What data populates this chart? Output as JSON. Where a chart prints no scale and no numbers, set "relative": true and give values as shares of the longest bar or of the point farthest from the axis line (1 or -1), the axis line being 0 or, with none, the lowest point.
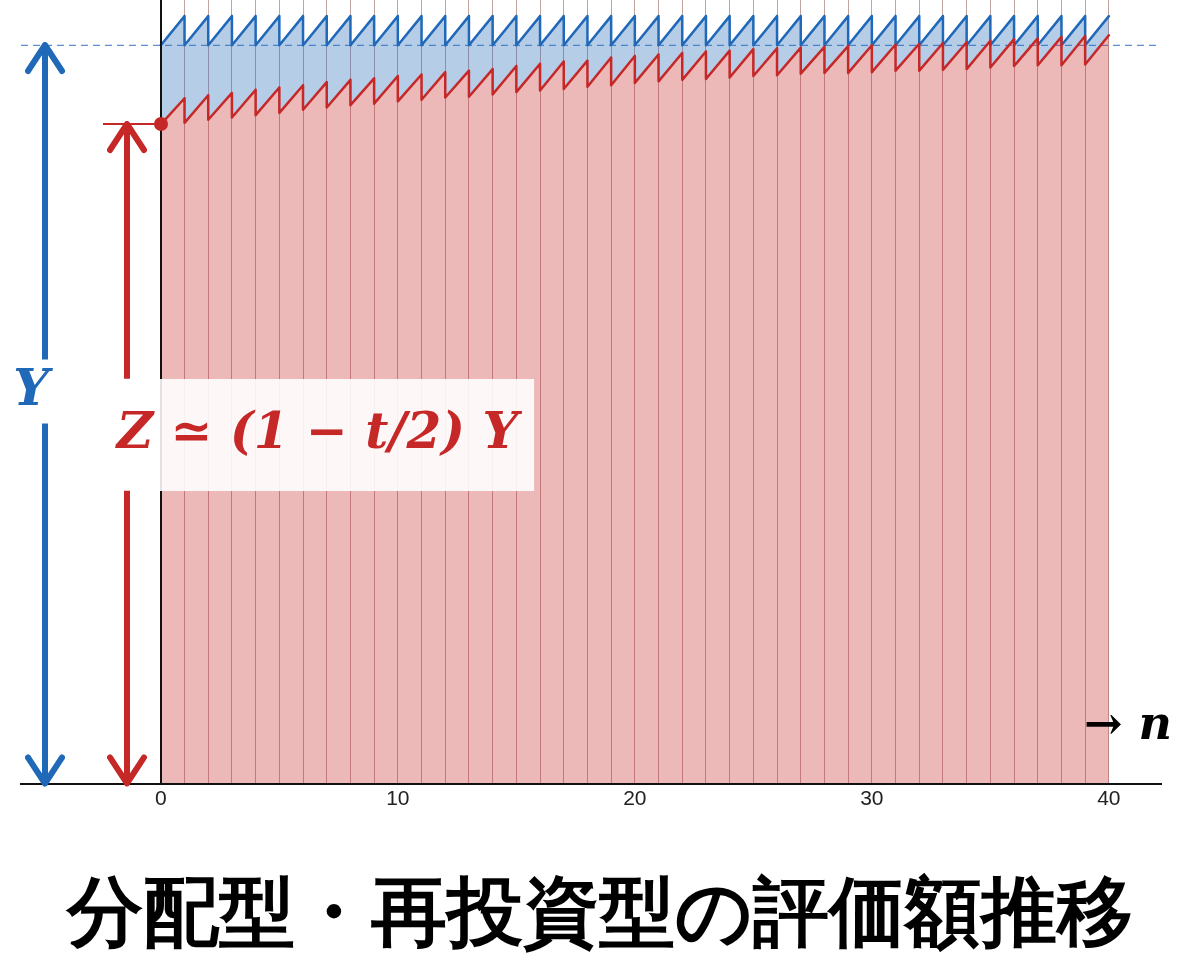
{
  "chart_data": {
    "type": "area",
    "title": "分配型・再投資型の評価額推移",
    "xlabel": "→ n",
    "relative": true,
    "xlim": [
      -5.9,
      42.2
    ],
    "xticks": [
      0,
      {
        "value": 1,
        "label": null
      },
      {
        "value": 2,
        "label": null
      },
      {
        "value": 3,
        "label": null
      },
      {
        "value": 4,
        "label": null
      },
      {
        "value": 5,
        "label": null
      },
      {
        "value": 6,
        "label": null
      },
      {
        "value": 7,
        "label": null
      },
      {
        "value": 8,
        "label": null
      },
      {
        "value": 9,
        "label": null
      },
      10,
      {
        "value": 11,
        "label": null
      },
      {
        "value": 12,
        "label": null
      },
      {
        "value": 13,
        "label": null
      },
      {
        "value": 14,
        "label": null
      },
      {
        "value": 15,
        "label": null
      },
      {
        "value": 16,
        "label": null
      },
      {
        "value": 17,
        "label": null
      },
      {
        "value": 18,
        "label": null
      },
      {
        "value": 19,
        "label": null
      },
      20,
      {
        "value": 21,
        "label": null
      },
      {
        "value": 22,
        "label": null
      },
      {
        "value": 23,
        "label": null
      },
      {
        "value": 24,
        "label": null
      },
      {
        "value": 25,
        "label": null
      },
      {
        "value": 26,
        "label": null
      },
      {
        "value": 27,
        "label": null
      },
      {
        "value": 28,
        "label": null
      },
      {
        "value": 29,
        "label": null
      },
      30,
      {
        "value": 31,
        "label": null
      },
      {
        "value": 32,
        "label": null
      },
      {
        "value": 33,
        "label": null
      },
      {
        "value": 34,
        "label": null
      },
      {
        "value": 35,
        "label": null
      },
      {
        "value": 36,
        "label": null
      },
      {
        "value": 37,
        "label": null
      },
      {
        "value": 38,
        "label": null
      },
      {
        "value": 39,
        "label": null
      },
      40
    ],
    "grid": "x",
    "series": [
      {
        "color": "#2068b8",
        "x": [
          0,
          1,
          1,
          2,
          2,
          3,
          3,
          4,
          4,
          5,
          5,
          6,
          6,
          7,
          7,
          8,
          8,
          9,
          9,
          10,
          10,
          11,
          11,
          12,
          12,
          13,
          13,
          14,
          14,
          15,
          15,
          16,
          16,
          17,
          17,
          18,
          18,
          19,
          19,
          20,
          20,
          21,
          21,
          22,
          22,
          23,
          23,
          24,
          24,
          25,
          25,
          26,
          26,
          27,
          27,
          28,
          28,
          29,
          29,
          30,
          30,
          31,
          31,
          32,
          32,
          33,
          33,
          34,
          34,
          35,
          35,
          36,
          36,
          37,
          37,
          38,
          38,
          39,
          39,
          40
        ],
        "values": [
          0.962,
          1,
          0.962,
          1,
          0.962,
          1,
          0.962,
          1,
          0.962,
          1,
          0.962,
          1,
          0.962,
          1,
          0.962,
          1,
          0.962,
          1,
          0.962,
          1,
          0.962,
          1,
          0.962,
          1,
          0.962,
          1,
          0.962,
          1,
          0.962,
          1,
          0.962,
          1,
          0.962,
          1,
          0.962,
          1,
          0.962,
          1,
          0.962,
          1,
          0.962,
          1,
          0.962,
          1,
          0.962,
          1,
          0.962,
          1,
          0.962,
          1,
          0.962,
          1,
          0.962,
          1,
          0.962,
          1,
          0.962,
          1,
          0.962,
          1,
          0.962,
          1,
          0.962,
          1,
          0.962,
          1,
          0.962,
          1,
          0.962,
          1,
          0.962,
          1,
          0.962,
          1,
          0.962,
          1,
          0.962,
          1,
          0.962,
          1
        ]
      },
      {
        "color": "#c62828",
        "x": [
          0,
          1,
          1,
          2,
          2,
          3,
          3,
          4,
          4,
          5,
          5,
          6,
          6,
          7,
          7,
          8,
          8,
          9,
          9,
          10,
          10,
          11,
          11,
          12,
          12,
          13,
          13,
          14,
          14,
          15,
          15,
          16,
          16,
          17,
          17,
          18,
          18,
          19,
          19,
          20,
          20,
          21,
          21,
          22,
          22,
          23,
          23,
          24,
          24,
          25,
          25,
          26,
          26,
          27,
          27,
          28,
          28,
          29,
          29,
          30,
          30,
          31,
          31,
          32,
          32,
          33,
          33,
          34,
          34,
          35,
          35,
          36,
          36,
          37,
          37,
          38,
          38,
          39,
          39,
          40
        ],
        "values": [
          0.859,
          0.893,
          0.861,
          0.897,
          0.865,
          0.9,
          0.868,
          0.904,
          0.871,
          0.907,
          0.874,
          0.91,
          0.878,
          0.914,
          0.881,
          0.917,
          0.884,
          0.919,
          0.886,
          0.922,
          0.889,
          0.924,
          0.891,
          0.927,
          0.894,
          0.929,
          0.895,
          0.931,
          0.898,
          0.935,
          0.901,
          0.938,
          0.903,
          0.941,
          0.905,
          0.942,
          0.908,
          0.946,
          0.91,
          0.948,
          0.913,
          0.95,
          0.915,
          0.952,
          0.917,
          0.954,
          0.918,
          0.955,
          0.92,
          0.957,
          0.922,
          0.958,
          0.923,
          0.959,
          0.925,
          0.96,
          0.926,
          0.961,
          0.926,
          0.962,
          0.927,
          0.963,
          0.929,
          0.964,
          0.929,
          0.965,
          0.93,
          0.966,
          0.931,
          0.968,
          0.933,
          0.97,
          0.935,
          0.971,
          0.936,
          0.973,
          0.936,
          0.974,
          0.937,
          0.975
        ]
      }
    ],
    "ref_lines": [
      {
        "axis": "y",
        "value": 0.962,
        "color": "#5b8fd0",
        "line_style": "dashed"
      }
    ],
    "annotations": [
      "Y",
      "Z ≃ (1 − t/2) Y"
    ]
  }
}
